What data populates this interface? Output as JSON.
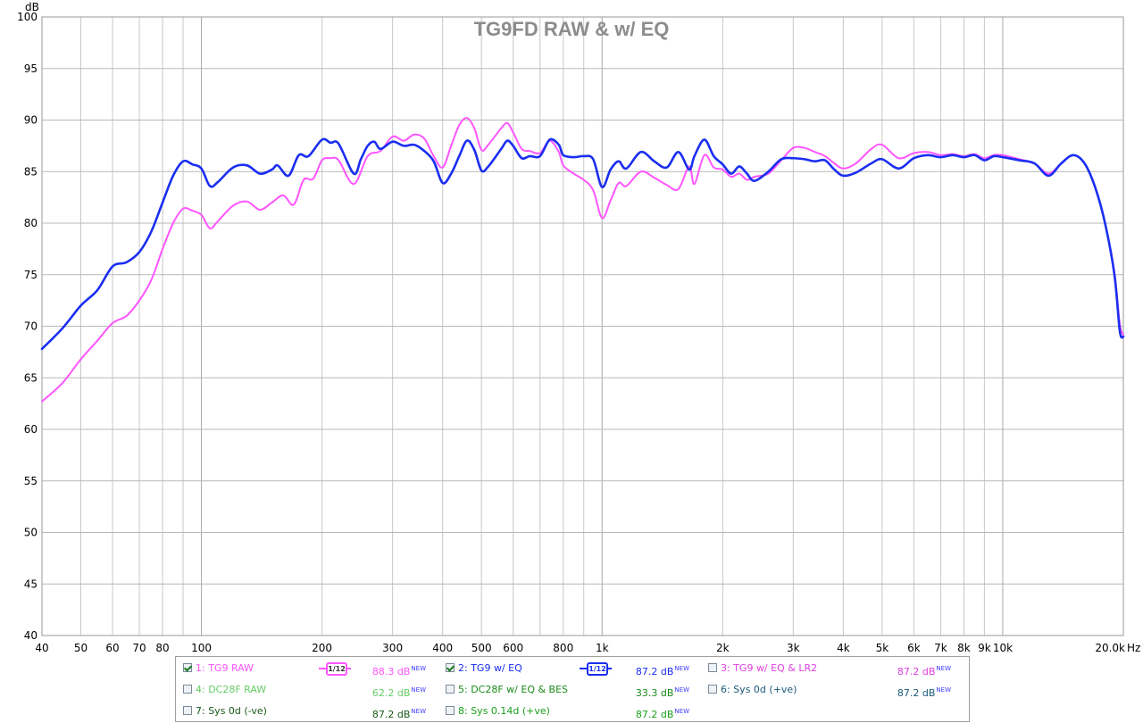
{
  "chart_data": {
    "type": "line",
    "title": "TG9FD RAW & w/ EQ",
    "ylabel": "dB",
    "xunit": "Hz",
    "xscale": "log",
    "xlim": [
      40,
      20000
    ],
    "ylim": [
      40,
      100
    ],
    "grid": true,
    "y_ticks": [
      "40",
      "45",
      "50",
      "55",
      "60",
      "65",
      "70",
      "75",
      "80",
      "85",
      "90",
      "95",
      "100"
    ],
    "x_ticks": [
      {
        "v": 40,
        "label": "40"
      },
      {
        "v": 50,
        "label": "50"
      },
      {
        "v": 60,
        "label": "60"
      },
      {
        "v": 70,
        "label": "70"
      },
      {
        "v": 80,
        "label": "80"
      },
      {
        "v": 100,
        "label": "100"
      },
      {
        "v": 200,
        "label": "200"
      },
      {
        "v": 300,
        "label": "300"
      },
      {
        "v": 400,
        "label": "400"
      },
      {
        "v": 500,
        "label": "500"
      },
      {
        "v": 600,
        "label": "600"
      },
      {
        "v": 800,
        "label": "800"
      },
      {
        "v": 1000,
        "label": "1k"
      },
      {
        "v": 2000,
        "label": "2k"
      },
      {
        "v": 3000,
        "label": "3k"
      },
      {
        "v": 4000,
        "label": "4k"
      },
      {
        "v": 5000,
        "label": "5k"
      },
      {
        "v": 6000,
        "label": "6k"
      },
      {
        "v": 7000,
        "label": "7k"
      },
      {
        "v": 8000,
        "label": "8k"
      },
      {
        "v": 9000,
        "label": "9k"
      },
      {
        "v": 10000,
        "label": "10k"
      },
      {
        "v": 20000,
        "label": "20.0k"
      }
    ],
    "series": [
      {
        "name": "1: TG9 RAW",
        "color": "#ff55ff",
        "points": [
          [
            40,
            62.7
          ],
          [
            45,
            64.5
          ],
          [
            50,
            66.8
          ],
          [
            55,
            68.6
          ],
          [
            60,
            70.3
          ],
          [
            65,
            71
          ],
          [
            70,
            72.5
          ],
          [
            75,
            74.5
          ],
          [
            80,
            77.5
          ],
          [
            85,
            80
          ],
          [
            90,
            81.4
          ],
          [
            95,
            81.2
          ],
          [
            100,
            80.8
          ],
          [
            105,
            79.5
          ],
          [
            110,
            80.2
          ],
          [
            120,
            81.7
          ],
          [
            130,
            82.1
          ],
          [
            140,
            81.3
          ],
          [
            150,
            82
          ],
          [
            160,
            82.7
          ],
          [
            170,
            81.8
          ],
          [
            180,
            84.2
          ],
          [
            190,
            84.3
          ],
          [
            200,
            86.1
          ],
          [
            210,
            86.3
          ],
          [
            220,
            86.1
          ],
          [
            240,
            83.8
          ],
          [
            260,
            86.5
          ],
          [
            280,
            87
          ],
          [
            300,
            88.4
          ],
          [
            320,
            88
          ],
          [
            340,
            88.6
          ],
          [
            360,
            88.2
          ],
          [
            380,
            86.5
          ],
          [
            400,
            85.4
          ],
          [
            420,
            87.5
          ],
          [
            440,
            89.5
          ],
          [
            460,
            90.2
          ],
          [
            480,
            89.2
          ],
          [
            500,
            87.1
          ],
          [
            520,
            87.6
          ],
          [
            560,
            89.2
          ],
          [
            580,
            89.7
          ],
          [
            600,
            88.8
          ],
          [
            630,
            87.2
          ],
          [
            660,
            87
          ],
          [
            700,
            86.8
          ],
          [
            740,
            88
          ],
          [
            780,
            86.9
          ],
          [
            800,
            85.6
          ],
          [
            850,
            84.8
          ],
          [
            900,
            84.2
          ],
          [
            950,
            83.2
          ],
          [
            1000,
            80.5
          ],
          [
            1050,
            82.2
          ],
          [
            1100,
            83.9
          ],
          [
            1150,
            83.6
          ],
          [
            1250,
            85
          ],
          [
            1350,
            84.4
          ],
          [
            1450,
            83.7
          ],
          [
            1550,
            83.3
          ],
          [
            1650,
            85.5
          ],
          [
            1700,
            83.8
          ],
          [
            1800,
            86.6
          ],
          [
            1900,
            85.4
          ],
          [
            2000,
            85.2
          ],
          [
            2100,
            84.5
          ],
          [
            2200,
            84.8
          ],
          [
            2300,
            84.2
          ],
          [
            2400,
            84.5
          ],
          [
            2600,
            84.8
          ],
          [
            2800,
            86.1
          ],
          [
            3000,
            87.3
          ],
          [
            3200,
            87.3
          ],
          [
            3400,
            86.9
          ],
          [
            3600,
            86.5
          ],
          [
            3800,
            85.8
          ],
          [
            4000,
            85.3
          ],
          [
            4300,
            85.8
          ],
          [
            4700,
            87.2
          ],
          [
            5000,
            87.6
          ],
          [
            5500,
            86.3
          ],
          [
            6000,
            86.8
          ],
          [
            6500,
            86.9
          ],
          [
            7000,
            86.6
          ],
          [
            7500,
            86.7
          ],
          [
            8000,
            86.5
          ],
          [
            8500,
            86.7
          ],
          [
            9000,
            86.3
          ],
          [
            9500,
            86.6
          ],
          [
            10000,
            86.6
          ],
          [
            11000,
            86.2
          ],
          [
            12000,
            85.8
          ],
          [
            13000,
            84.8
          ],
          [
            14000,
            85.8
          ],
          [
            15000,
            86.6
          ],
          [
            16000,
            85.8
          ],
          [
            17000,
            83.5
          ],
          [
            18000,
            80
          ],
          [
            19000,
            75.2
          ],
          [
            19600,
            70.2
          ],
          [
            20000,
            69.2
          ]
        ]
      },
      {
        "name": "2: TG9 w/ EQ",
        "color": "#1a2ef0",
        "points": [
          [
            40,
            67.8
          ],
          [
            45,
            69.8
          ],
          [
            50,
            72
          ],
          [
            55,
            73.5
          ],
          [
            60,
            75.8
          ],
          [
            65,
            76.2
          ],
          [
            70,
            77.2
          ],
          [
            75,
            79.2
          ],
          [
            80,
            82
          ],
          [
            85,
            84.6
          ],
          [
            90,
            86
          ],
          [
            95,
            85.7
          ],
          [
            100,
            85.3
          ],
          [
            105,
            83.6
          ],
          [
            110,
            84
          ],
          [
            120,
            85.4
          ],
          [
            130,
            85.6
          ],
          [
            140,
            84.8
          ],
          [
            150,
            85.2
          ],
          [
            155,
            85.6
          ],
          [
            165,
            84.6
          ],
          [
            175,
            86.6
          ],
          [
            185,
            86.5
          ],
          [
            200,
            88.1
          ],
          [
            210,
            87.8
          ],
          [
            220,
            87.7
          ],
          [
            240,
            84.8
          ],
          [
            250,
            86.2
          ],
          [
            260,
            87.5
          ],
          [
            270,
            87.9
          ],
          [
            280,
            87.2
          ],
          [
            300,
            87.9
          ],
          [
            320,
            87.5
          ],
          [
            340,
            87.6
          ],
          [
            360,
            87
          ],
          [
            380,
            86
          ],
          [
            400,
            83.9
          ],
          [
            420,
            84.8
          ],
          [
            440,
            86.5
          ],
          [
            460,
            88
          ],
          [
            480,
            87.1
          ],
          [
            500,
            85.1
          ],
          [
            520,
            85.5
          ],
          [
            560,
            87.2
          ],
          [
            580,
            88
          ],
          [
            600,
            87.5
          ],
          [
            630,
            86.3
          ],
          [
            660,
            86.5
          ],
          [
            700,
            86.5
          ],
          [
            740,
            88.1
          ],
          [
            780,
            87.6
          ],
          [
            800,
            86.6
          ],
          [
            850,
            86.4
          ],
          [
            900,
            86.5
          ],
          [
            950,
            86.2
          ],
          [
            1000,
            83.5
          ],
          [
            1050,
            85.2
          ],
          [
            1100,
            86
          ],
          [
            1150,
            85.3
          ],
          [
            1250,
            86.9
          ],
          [
            1350,
            86
          ],
          [
            1450,
            85.4
          ],
          [
            1550,
            86.9
          ],
          [
            1650,
            85.2
          ],
          [
            1700,
            86.5
          ],
          [
            1800,
            88.1
          ],
          [
            1900,
            86.5
          ],
          [
            2000,
            85.7
          ],
          [
            2100,
            84.8
          ],
          [
            2200,
            85.5
          ],
          [
            2300,
            84.8
          ],
          [
            2400,
            84.1
          ],
          [
            2600,
            85
          ],
          [
            2800,
            86.2
          ],
          [
            3000,
            86.3
          ],
          [
            3200,
            86.2
          ],
          [
            3400,
            86
          ],
          [
            3600,
            86.1
          ],
          [
            3800,
            85.2
          ],
          [
            4000,
            84.6
          ],
          [
            4300,
            84.9
          ],
          [
            4700,
            85.8
          ],
          [
            5000,
            86.2
          ],
          [
            5500,
            85.3
          ],
          [
            6000,
            86.3
          ],
          [
            6500,
            86.6
          ],
          [
            7000,
            86.4
          ],
          [
            7500,
            86.6
          ],
          [
            8000,
            86.4
          ],
          [
            8500,
            86.6
          ],
          [
            9000,
            86.1
          ],
          [
            9500,
            86.5
          ],
          [
            10000,
            86.4
          ],
          [
            11000,
            86.1
          ],
          [
            12000,
            85.8
          ],
          [
            13000,
            84.6
          ],
          [
            14000,
            85.8
          ],
          [
            15000,
            86.6
          ],
          [
            16000,
            85.8
          ],
          [
            17000,
            83.5
          ],
          [
            18000,
            80
          ],
          [
            19000,
            75
          ],
          [
            19600,
            69.5
          ],
          [
            20000,
            69
          ]
        ]
      }
    ],
    "legend": [
      {
        "label": "1: TG9 RAW",
        "checked": true,
        "color": "#ff55ff",
        "smoothing": "1/12",
        "level": "88.3 dB",
        "badge": "NEW",
        "level_color": "#ff55ff"
      },
      {
        "label": "2: TG9 w/ EQ",
        "checked": true,
        "color": "#1a2ef0",
        "smoothing": "1/12",
        "level": "87.2 dB",
        "badge": "NEW",
        "level_color": "#1a2ef0"
      },
      {
        "label": "3: TG9 w/ EQ & LR2",
        "checked": false,
        "color": "#e040e0",
        "smoothing": "",
        "level": "87.2 dB",
        "badge": "NEW",
        "level_color": "#e040e0"
      },
      {
        "label": "4: DC28F RAW",
        "checked": false,
        "color": "#66cc66",
        "smoothing": "",
        "level": "62.2 dB",
        "badge": "NEW",
        "level_color": "#66cc66"
      },
      {
        "label": "5: DC28F w/ EQ & BES",
        "checked": false,
        "color": "#1a8a1a",
        "smoothing": "",
        "level": "33.3 dB",
        "badge": "NEW",
        "level_color": "#1a8a1a"
      },
      {
        "label": "6: Sys 0d (+ve)",
        "checked": false,
        "color": "#1a5a7a",
        "smoothing": "",
        "level": "87.2 dB",
        "badge": "NEW",
        "level_color": "#1a5a7a"
      },
      {
        "label": "7: Sys 0d (-ve)",
        "checked": false,
        "color": "#1a5a1a",
        "smoothing": "",
        "level": "87.2 dB",
        "badge": "NEW",
        "level_color": "#1a5a1a"
      },
      {
        "label": "8: Sys 0.14d (+ve)",
        "checked": false,
        "color": "#1aa01a",
        "smoothing": "",
        "level": "87.2 dB",
        "badge": "NEW",
        "level_color": "#1aa01a"
      }
    ]
  }
}
